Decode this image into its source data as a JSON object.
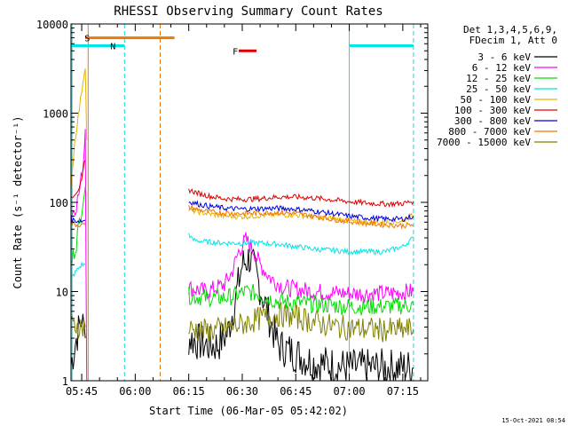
{
  "chart_data": {
    "type": "line",
    "title": "RHESSI Observing Summary Count Rates",
    "xlabel": "Start Time (06-Mar-05 05:42:02)",
    "ylabel": "Count Rate (s⁻¹ detector⁻¹)",
    "yscale": "log",
    "ylim": [
      1,
      10000
    ],
    "xlim_min": [
      342,
      442
    ],
    "x_ticks": [
      {
        "m": 345,
        "label": "05:45"
      },
      {
        "m": 360,
        "label": "06:00"
      },
      {
        "m": 375,
        "label": "06:15"
      },
      {
        "m": 390,
        "label": "06:30"
      },
      {
        "m": 405,
        "label": "06:45"
      },
      {
        "m": 420,
        "label": "07:00"
      },
      {
        "m": 435,
        "label": "07:15"
      }
    ],
    "y_ticks": [
      {
        "v": 1,
        "label": "1"
      },
      {
        "v": 10,
        "label": "10"
      },
      {
        "v": 100,
        "label": "100"
      },
      {
        "v": 1000,
        "label": "1000"
      },
      {
        "v": 10000,
        "label": "10000"
      }
    ],
    "legend_title": [
      "Det 1,3,4,5,6,9,",
      "FDecim 1, Att 0"
    ],
    "series": [
      {
        "name": "3 - 6 keV",
        "color": "#000000",
        "segments": [
          {
            "x": [
              342,
              343.5,
              345,
              346
            ],
            "y": [
              1.5,
              3,
              5,
              3
            ]
          },
          {
            "x": [
              375,
              380,
              383,
              386,
              388,
              390,
              392,
              394,
              397,
              400,
              410,
              420,
              430,
              438
            ],
            "y": [
              3,
              2.5,
              2.5,
              3.5,
              8,
              20,
              24,
              15,
              6,
              2.5,
              1.6,
              1.4,
              1.4,
              1.4
            ]
          }
        ]
      },
      {
        "name": "6 - 12 keV",
        "color": "#ff00ff",
        "segments": [
          {
            "x": [
              342,
              343.5,
              344.5,
              345.5,
              346,
              346.4
            ],
            "y": [
              70,
              95,
              140,
              300,
              700,
              1
            ]
          },
          {
            "x": [
              375,
              380,
              385,
              387,
              389,
              391,
              393,
              395,
              398,
              402,
              410,
              420,
              430,
              438
            ],
            "y": [
              11,
              10,
              12,
              16,
              28,
              38,
              30,
              20,
              14,
              11,
              10,
              9.5,
              9.5,
              10
            ]
          }
        ]
      },
      {
        "name": "12 - 25 keV",
        "color": "#00dd00",
        "segments": [
          {
            "x": [
              342,
              343.5,
              345,
              346
            ],
            "y": [
              20,
              35,
              90,
              150
            ]
          },
          {
            "x": [
              375,
              380,
              385,
              388,
              391,
              394,
              397,
              400,
              410,
              420,
              430,
              438
            ],
            "y": [
              9,
              8.5,
              8.5,
              9,
              10,
              9.5,
              8.5,
              7.8,
              7.2,
              6.8,
              6.8,
              7
            ]
          }
        ]
      },
      {
        "name": "25 - 50 keV",
        "color": "#00e5e5",
        "segments": [
          {
            "x": [
              342,
              343.5,
              345,
              346
            ],
            "y": [
              14,
              17,
              20,
              20
            ]
          },
          {
            "x": [
              375,
              376,
              380,
              385,
              390,
              395,
              400,
              405,
              410,
              415,
              420,
              425,
              430,
              435,
              438
            ],
            "y": [
              45,
              38,
              36,
              35,
              35,
              35,
              34,
              32,
              30,
              29,
              28,
              28,
              28,
              32,
              40
            ]
          }
        ]
      },
      {
        "name": "50 - 100 keV",
        "color": "#e8b400",
        "segments": [
          {
            "x": [
              342,
              343,
              344,
              345,
              346,
              346.4
            ],
            "y": [
              150,
              450,
              900,
              1800,
              3400,
              500
            ]
          },
          {
            "x": [
              375,
              380,
              385,
              390,
              395,
              400,
              405,
              410,
              415,
              420,
              425,
              430,
              435,
              438
            ],
            "y": [
              82,
              75,
              70,
              69,
              71,
              73,
              72,
              69,
              66,
              62,
              60,
              59,
              62,
              72
            ]
          }
        ]
      },
      {
        "name": "100 - 300 keV",
        "color": "#e00000",
        "segments": [
          {
            "x": [
              342,
              343,
              344,
              345,
              345.5,
              346
            ],
            "y": [
              115,
              125,
              140,
              170,
              240,
              300
            ]
          },
          {
            "x": [
              375,
              378,
              381,
              385,
              390,
              395,
              400,
              405,
              410,
              415,
              420,
              425,
              430,
              435,
              438
            ],
            "y": [
              138,
              125,
              117,
              110,
              108,
              110,
              115,
              115,
              112,
              107,
              102,
              98,
              96,
              97,
              103
            ]
          }
        ]
      },
      {
        "name": "300 - 800 keV",
        "color": "#0000dd",
        "segments": [
          {
            "x": [
              342,
              343,
              344,
              345,
              346
            ],
            "y": [
              65,
              63,
              62,
              62,
              63
            ]
          },
          {
            "x": [
              375,
              378,
              381,
              385,
              390,
              395,
              400,
              405,
              410,
              415,
              420,
              425,
              430,
              435,
              438
            ],
            "y": [
              102,
              95,
              90,
              86,
              84,
              85,
              86,
              84,
              80,
              75,
              70,
              67,
              65,
              65,
              70
            ]
          }
        ]
      },
      {
        "name": "800 - 7000 keV",
        "color": "#f07800",
        "segments": [
          {
            "x": [
              342,
              343,
              344,
              345,
              346
            ],
            "y": [
              58,
              57,
              56,
              56,
              56
            ]
          },
          {
            "x": [
              375,
              378,
              381,
              385,
              390,
              395,
              400,
              405,
              410,
              415,
              420,
              425,
              430,
              435,
              438
            ],
            "y": [
              88,
              82,
              78,
              76,
              75,
              76,
              77,
              75,
              70,
              65,
              61,
              58,
              56,
              55,
              56
            ]
          }
        ]
      },
      {
        "name": "7000 - 15000 keV",
        "color": "#808000",
        "segments": [
          {
            "x": [
              342,
              343.5,
              345,
              346
            ],
            "y": [
              4,
              4.2,
              4,
              4
            ]
          },
          {
            "x": [
              375,
              380,
              385,
              390,
              395,
              400,
              405,
              410,
              415,
              420,
              425,
              430,
              435,
              438
            ],
            "y": [
              3.8,
              3.6,
              3.8,
              4.3,
              5,
              5.5,
              5.2,
              4.6,
              4.1,
              3.9,
              3.8,
              3.7,
              3.7,
              3.8
            ]
          }
        ]
      }
    ],
    "flag_bars": [
      {
        "label": "S",
        "color": "#f07800",
        "x": [
          346,
          371
        ],
        "y": 7000,
        "label_x": 345.8
      },
      {
        "label": "N",
        "color": "#00e5e5",
        "x": [
          342,
          357
        ],
        "y": 5700,
        "label_x": 353
      },
      {
        "label": "",
        "color": "#00e5e5",
        "x": [
          420,
          438
        ],
        "y": 5700,
        "label_x": 420
      },
      {
        "label": "F",
        "color": "#e00000",
        "x": [
          389,
          394
        ],
        "y": 5000,
        "label_x": 387.3
      }
    ],
    "vlines": [
      {
        "x": 342.3,
        "color": "#00e5e5",
        "style": "solid"
      },
      {
        "x": 346.8,
        "color": "#f07800",
        "style": "solid"
      },
      {
        "x": 357,
        "color": "#00e5e5",
        "style": "dashed"
      },
      {
        "x": 367,
        "color": "#f07800",
        "style": "dashed"
      },
      {
        "x": 420,
        "color": "#00e5e5",
        "style": "solid"
      },
      {
        "x": 438,
        "color": "#00e5e5",
        "style": "dashed"
      }
    ],
    "footer_timestamp": "15-Oct-2021 08:54"
  }
}
